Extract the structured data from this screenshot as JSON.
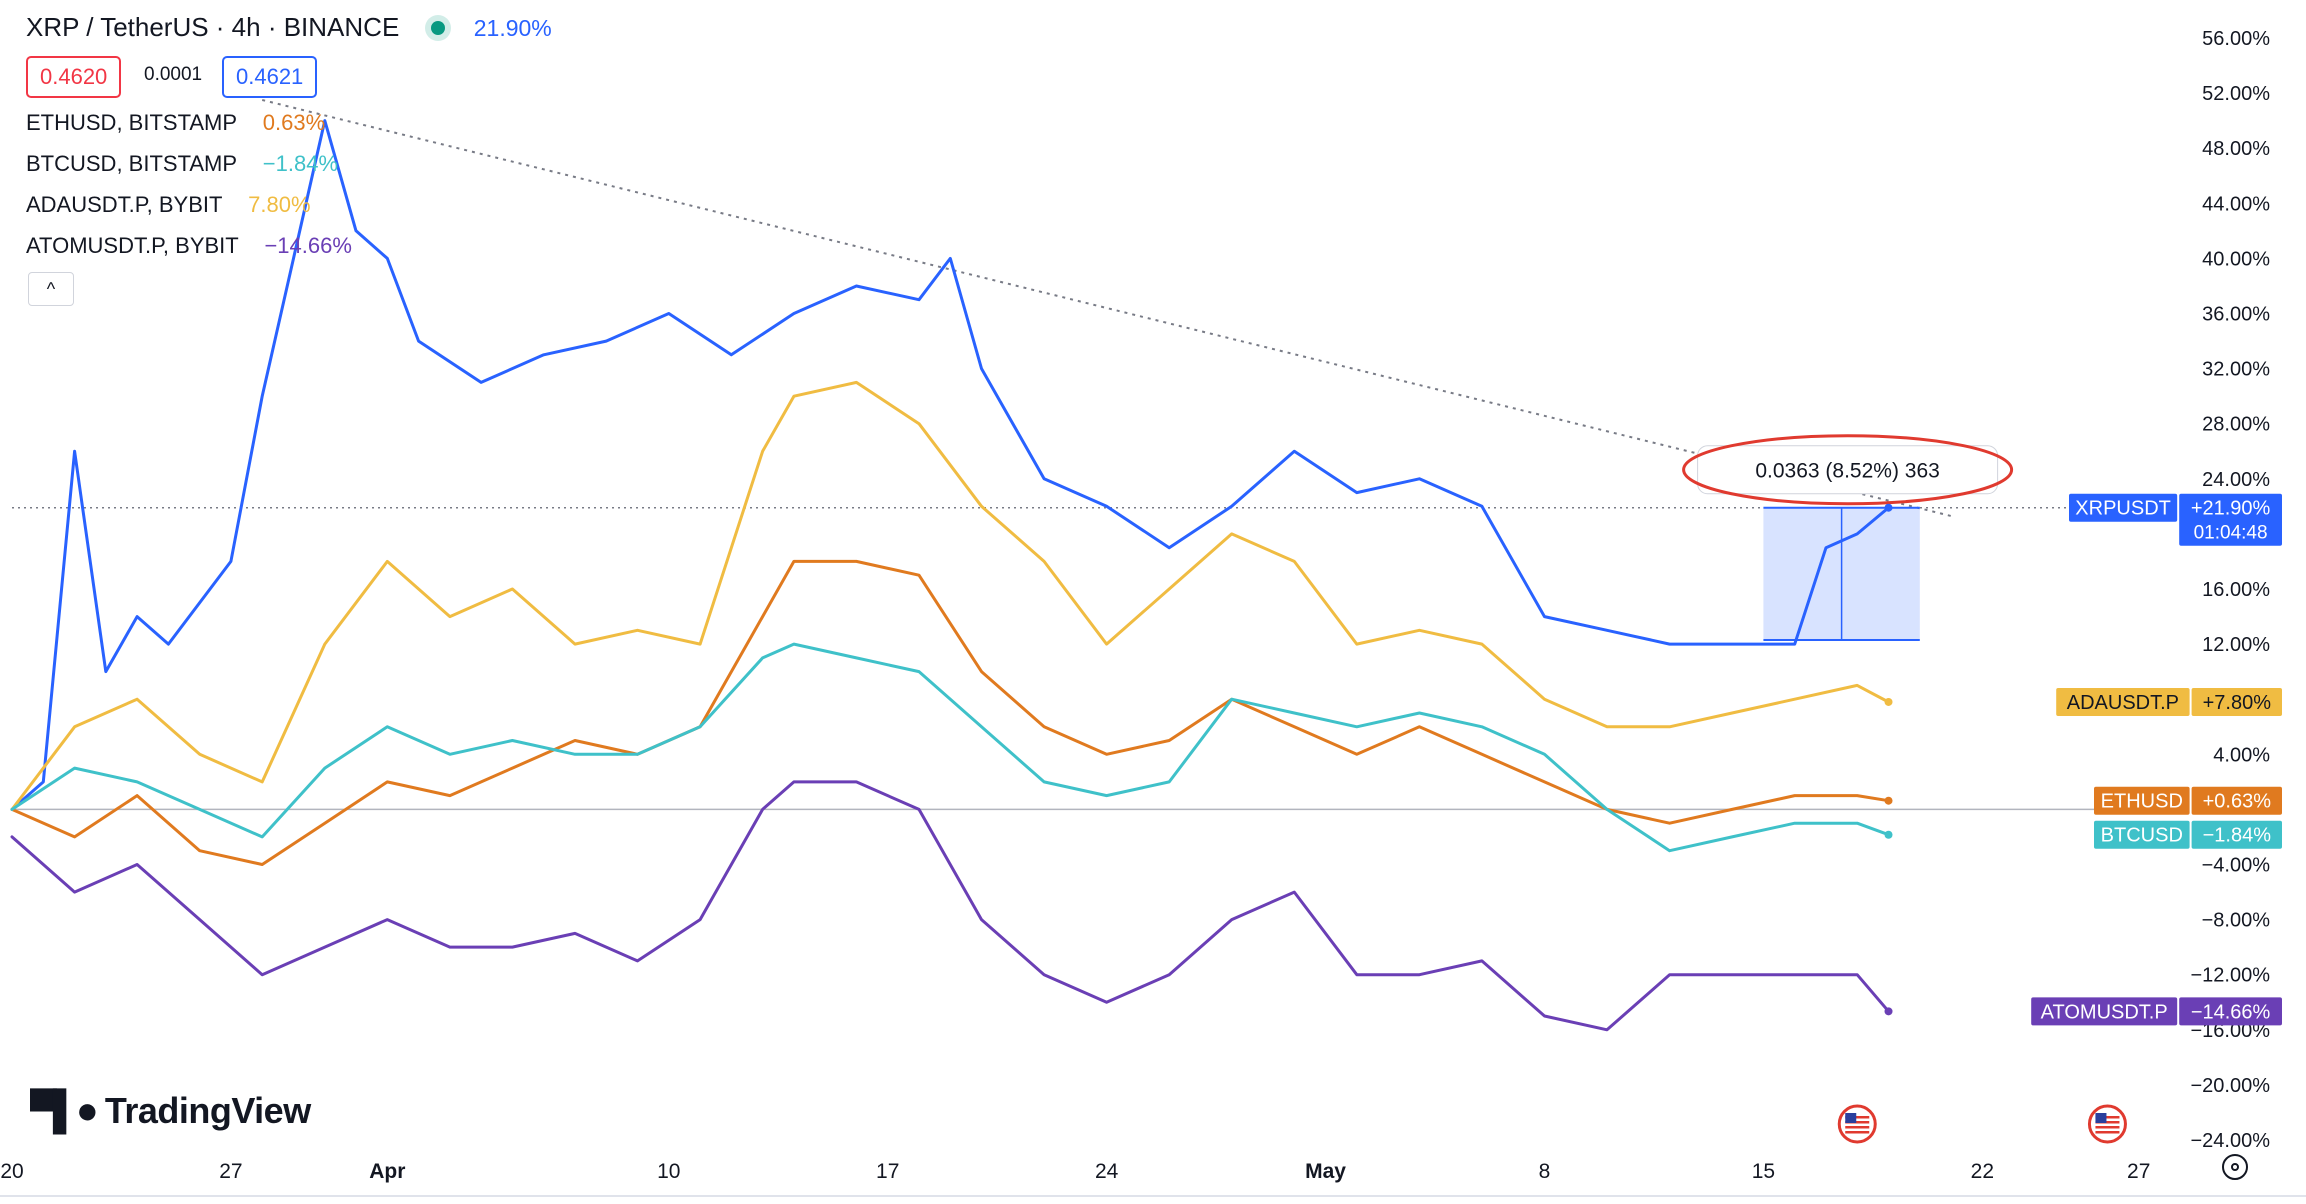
{
  "header": {
    "symbol": "XRP / TetherUS · 4h · BINANCE",
    "change": "21.90%",
    "bid": "0.4620",
    "spread": "0.0001",
    "ask": "0.4621",
    "collapse_glyph": "^"
  },
  "compare": [
    {
      "name": "ETHUSD, BITSTAMP",
      "change": "0.63%",
      "color": "#e07a1f"
    },
    {
      "name": "BTCUSD, BITSTAMP",
      "change": "−1.84%",
      "color": "#3fc1c9"
    },
    {
      "name": "ADAUSDT.P, BYBIT",
      "change": "7.80%",
      "color": "#f0bc42"
    },
    {
      "name": "ATOMUSDT.P, BYBIT",
      "change": "−14.66%",
      "color": "#6a3fb5"
    }
  ],
  "logo": "TradingView",
  "chart_data": {
    "type": "line",
    "y_axis": {
      "unit": "percent",
      "ylim": [
        -24,
        56
      ],
      "ticks": [
        "56.00%",
        "52.00%",
        "48.00%",
        "44.00%",
        "40.00%",
        "36.00%",
        "32.00%",
        "28.00%",
        "24.00%",
        "16.00%",
        "12.00%",
        "4.00%",
        "−4.00%",
        "−8.00%",
        "−12.00%",
        "−16.00%",
        "−20.00%",
        "−24.00%"
      ],
      "tick_values": [
        56,
        52,
        48,
        44,
        40,
        36,
        32,
        28,
        24,
        16,
        12,
        4,
        -4,
        -8,
        -12,
        -16,
        -20,
        -24
      ]
    },
    "x_axis": {
      "ticks": [
        "20",
        "27",
        "Apr",
        "10",
        "17",
        "24",
        "May",
        "8",
        "15",
        "22",
        "27"
      ],
      "bold_ticks": [
        "Apr",
        "May"
      ]
    },
    "x_range": [
      "2023-03-20",
      "2023-05-28"
    ],
    "x_ticks_dates": [
      "2023-03-20",
      "2023-03-27",
      "2023-04-01",
      "2023-04-10",
      "2023-04-17",
      "2023-04-24",
      "2023-05-01",
      "2023-05-08",
      "2023-05-15",
      "2023-05-22",
      "2023-05-27"
    ],
    "series": [
      {
        "name": "XRPUSDT",
        "color": "#2962ff",
        "last_label": "+21.90%",
        "countdown": "01:04:48",
        "last": 21.9,
        "x": [
          "2023-03-20",
          "2023-03-21",
          "2023-03-22",
          "2023-03-23",
          "2023-03-24",
          "2023-03-25",
          "2023-03-27",
          "2023-03-28",
          "2023-03-29",
          "2023-03-30",
          "2023-03-31",
          "2023-04-01",
          "2023-04-02",
          "2023-04-04",
          "2023-04-06",
          "2023-04-08",
          "2023-04-10",
          "2023-04-12",
          "2023-04-14",
          "2023-04-16",
          "2023-04-18",
          "2023-04-19",
          "2023-04-20",
          "2023-04-22",
          "2023-04-24",
          "2023-04-26",
          "2023-04-28",
          "2023-04-30",
          "2023-05-02",
          "2023-05-04",
          "2023-05-06",
          "2023-05-08",
          "2023-05-10",
          "2023-05-12",
          "2023-05-14",
          "2023-05-16",
          "2023-05-17",
          "2023-05-18",
          "2023-05-19"
        ],
        "y": [
          0,
          2,
          26,
          10,
          14,
          12,
          18,
          30,
          40,
          50,
          42,
          40,
          34,
          31,
          33,
          34,
          36,
          33,
          36,
          38,
          37,
          40,
          32,
          24,
          22,
          19,
          22,
          26,
          23,
          24,
          22,
          14,
          13,
          12,
          12,
          12,
          19,
          20,
          21.9
        ]
      },
      {
        "name": "ADAUSDT.P",
        "color": "#f0bc42",
        "last_label": "+7.80%",
        "last": 7.8,
        "x": [
          "2023-03-20",
          "2023-03-22",
          "2023-03-24",
          "2023-03-26",
          "2023-03-28",
          "2023-03-30",
          "2023-04-01",
          "2023-04-03",
          "2023-04-05",
          "2023-04-07",
          "2023-04-09",
          "2023-04-11",
          "2023-04-13",
          "2023-04-14",
          "2023-04-16",
          "2023-04-18",
          "2023-04-20",
          "2023-04-22",
          "2023-04-24",
          "2023-04-26",
          "2023-04-28",
          "2023-04-30",
          "2023-05-02",
          "2023-05-04",
          "2023-05-06",
          "2023-05-08",
          "2023-05-10",
          "2023-05-12",
          "2023-05-14",
          "2023-05-16",
          "2023-05-18",
          "2023-05-19"
        ],
        "y": [
          0,
          6,
          8,
          4,
          2,
          12,
          18,
          14,
          16,
          12,
          13,
          12,
          26,
          30,
          31,
          28,
          22,
          18,
          12,
          16,
          20,
          18,
          12,
          13,
          12,
          8,
          6,
          6,
          7,
          8,
          9,
          7.8
        ]
      },
      {
        "name": "ETHUSD",
        "color": "#e07a1f",
        "last_label": "+0.63%",
        "last": 0.63,
        "x": [
          "2023-03-20",
          "2023-03-22",
          "2023-03-24",
          "2023-03-26",
          "2023-03-28",
          "2023-03-30",
          "2023-04-01",
          "2023-04-03",
          "2023-04-05",
          "2023-04-07",
          "2023-04-09",
          "2023-04-11",
          "2023-04-13",
          "2023-04-14",
          "2023-04-16",
          "2023-04-18",
          "2023-04-20",
          "2023-04-22",
          "2023-04-24",
          "2023-04-26",
          "2023-04-28",
          "2023-04-30",
          "2023-05-02",
          "2023-05-04",
          "2023-05-06",
          "2023-05-08",
          "2023-05-10",
          "2023-05-12",
          "2023-05-14",
          "2023-05-16",
          "2023-05-18",
          "2023-05-19"
        ],
        "y": [
          0,
          -2,
          1,
          -3,
          -4,
          -1,
          2,
          1,
          3,
          5,
          4,
          6,
          14,
          18,
          18,
          17,
          10,
          6,
          4,
          5,
          8,
          6,
          4,
          6,
          4,
          2,
          0,
          -1,
          0,
          1,
          1,
          0.63
        ]
      },
      {
        "name": "BTCUSD",
        "color": "#3fc1c9",
        "last_label": "−1.84%",
        "last": -1.84,
        "x": [
          "2023-03-20",
          "2023-03-22",
          "2023-03-24",
          "2023-03-26",
          "2023-03-28",
          "2023-03-30",
          "2023-04-01",
          "2023-04-03",
          "2023-04-05",
          "2023-04-07",
          "2023-04-09",
          "2023-04-11",
          "2023-04-13",
          "2023-04-14",
          "2023-04-16",
          "2023-04-18",
          "2023-04-20",
          "2023-04-22",
          "2023-04-24",
          "2023-04-26",
          "2023-04-28",
          "2023-04-30",
          "2023-05-02",
          "2023-05-04",
          "2023-05-06",
          "2023-05-08",
          "2023-05-10",
          "2023-05-12",
          "2023-05-14",
          "2023-05-16",
          "2023-05-18",
          "2023-05-19"
        ],
        "y": [
          0,
          3,
          2,
          0,
          -2,
          3,
          6,
          4,
          5,
          4,
          4,
          6,
          11,
          12,
          11,
          10,
          6,
          2,
          1,
          2,
          8,
          7,
          6,
          7,
          6,
          4,
          0,
          -3,
          -2,
          -1,
          -1,
          -1.84
        ]
      },
      {
        "name": "ATOMUSDT.P",
        "color": "#6a3fb5",
        "last_label": "−14.66%",
        "last": -14.66,
        "x": [
          "2023-03-20",
          "2023-03-22",
          "2023-03-24",
          "2023-03-26",
          "2023-03-28",
          "2023-03-30",
          "2023-04-01",
          "2023-04-03",
          "2023-04-05",
          "2023-04-07",
          "2023-04-09",
          "2023-04-11",
          "2023-04-13",
          "2023-04-14",
          "2023-04-16",
          "2023-04-18",
          "2023-04-20",
          "2023-04-22",
          "2023-04-24",
          "2023-04-26",
          "2023-04-28",
          "2023-04-30",
          "2023-05-02",
          "2023-05-04",
          "2023-05-06",
          "2023-05-08",
          "2023-05-10",
          "2023-05-12",
          "2023-05-14",
          "2023-05-16",
          "2023-05-18",
          "2023-05-19"
        ],
        "y": [
          -2,
          -6,
          -4,
          -8,
          -12,
          -10,
          -8,
          -10,
          -10,
          -9,
          -11,
          -8,
          0,
          2,
          2,
          0,
          -8,
          -12,
          -14,
          -12,
          -8,
          -6,
          -12,
          -12,
          -11,
          -15,
          -16,
          -12,
          -12,
          -12,
          -12,
          -14.66
        ]
      }
    ],
    "trendline": {
      "x": [
        "2023-03-28",
        "2023-05-21"
      ],
      "y": [
        51.5,
        21.3
      ],
      "style": "dotted"
    },
    "measurement": {
      "label": "0.0363 (8.52%) 363",
      "x": [
        "2023-05-15",
        "2023-05-20"
      ],
      "y": [
        12.3,
        21.9
      ]
    },
    "reference_lines": [
      {
        "y": 0
      },
      {
        "y": 21.9,
        "style": "dotted"
      }
    ],
    "event_markers": [
      {
        "x": "2023-05-18",
        "icon": "us-flag-icon"
      },
      {
        "x": "2023-05-26",
        "icon": "us-flag-icon"
      }
    ],
    "grid": false,
    "legend": "top-left"
  }
}
